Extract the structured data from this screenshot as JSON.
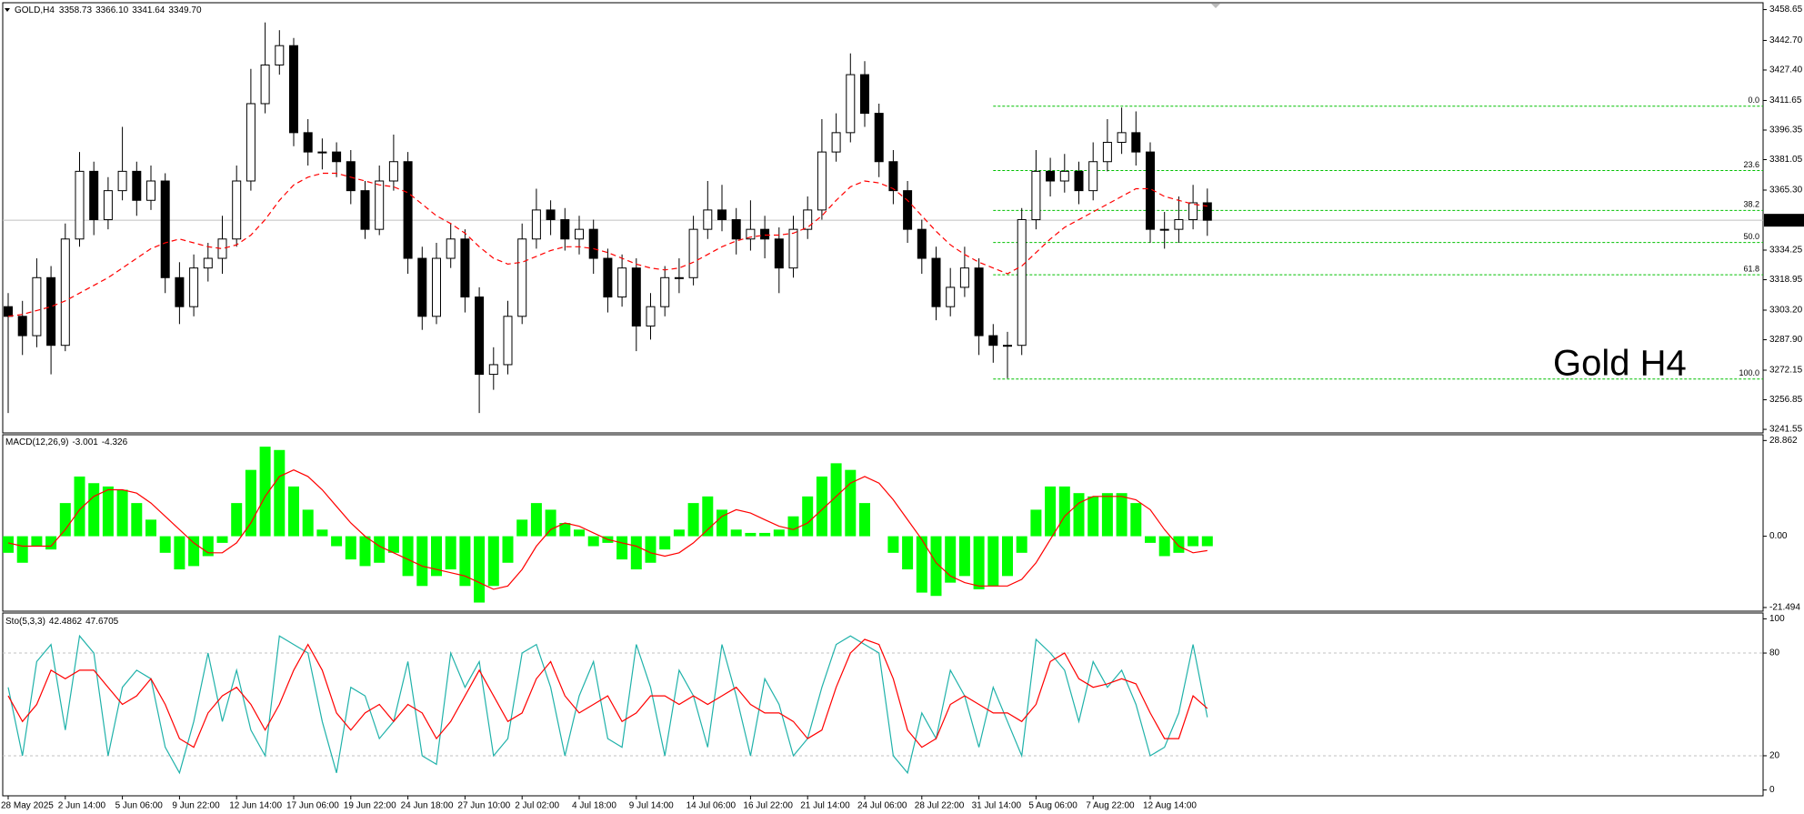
{
  "chart_data": [
    {
      "type": "candlestick",
      "title": "GOLD,H4",
      "header_values": [
        "3358.73",
        "3366.10",
        "3341.64",
        "3349.70"
      ],
      "categories": [
        "28 May 2025",
        null,
        null,
        null,
        "2 Jun 14:00",
        null,
        null,
        null,
        "5 Jun 06:00",
        null,
        null,
        null,
        "9 Jun 22:00",
        null,
        null,
        null,
        "12 Jun 14:00",
        null,
        null,
        null,
        "17 Jun 06:00",
        null,
        null,
        null,
        "19 Jun 22:00",
        null,
        null,
        null,
        "24 Jun 18:00",
        null,
        null,
        null,
        "27 Jun 10:00",
        null,
        null,
        null,
        "2 Jul 02:00",
        null,
        null,
        null,
        "4 Jul 18:00",
        null,
        null,
        null,
        "9 Jul 14:00",
        null,
        null,
        null,
        "14 Jul 06:00",
        null,
        null,
        null,
        "16 Jul 22:00",
        null,
        null,
        null,
        "21 Jul 14:00",
        null,
        null,
        null,
        "24 Jul 06:00",
        null,
        null,
        null,
        "28 Jul 22:00",
        null,
        null,
        null,
        "31 Jul 14:00",
        null,
        null,
        null,
        "5 Aug 06:00",
        null,
        null,
        null,
        "7 Aug 22:00",
        null,
        null,
        null,
        "12 Aug 14:00",
        null,
        null,
        null,
        null
      ],
      "open": [
        3305,
        3300,
        3290,
        3320,
        3285,
        3340,
        3375,
        3350,
        3365,
        3375,
        3360,
        3370,
        3320,
        3305,
        3325,
        3330,
        3340,
        3370,
        3410,
        3430,
        3440,
        3395,
        3385,
        3385,
        3380,
        3365,
        3345,
        3370,
        3380,
        3330,
        3300,
        3330,
        3340,
        3310,
        3270,
        3275,
        3300,
        3340,
        3355,
        3350,
        3340,
        3345,
        3330,
        3310,
        3325,
        3295,
        3305,
        3320,
        3320,
        3345,
        3355,
        3350,
        3340,
        3345,
        3340,
        3325,
        3345,
        3355,
        3385,
        3395,
        3425,
        3405,
        3380,
        3365,
        3345,
        3330,
        3305,
        3315,
        3325,
        3290,
        3285,
        3285,
        3350,
        3375,
        3370,
        3375,
        3365,
        3380,
        3390,
        3395,
        3385,
        3345,
        3345,
        3350,
        3358.73
      ],
      "high": [
        3312,
        3308,
        3330,
        3326,
        3348,
        3385,
        3380,
        3372,
        3398,
        3380,
        3378,
        3374,
        3328,
        3332,
        3338,
        3352,
        3378,
        3428,
        3452,
        3448,
        3444,
        3402,
        3392,
        3390,
        3386,
        3370,
        3378,
        3394,
        3385,
        3336,
        3338,
        3348,
        3345,
        3315,
        3284,
        3308,
        3348,
        3366,
        3360,
        3356,
        3352,
        3350,
        3335,
        3332,
        3330,
        3312,
        3326,
        3330,
        3352,
        3370,
        3368,
        3356,
        3360,
        3352,
        3346,
        3352,
        3362,
        3402,
        3405,
        3436,
        3432,
        3410,
        3386,
        3370,
        3350,
        3336,
        3325,
        3336,
        3330,
        3296,
        3292,
        3356,
        3386,
        3382,
        3384,
        3380,
        3390,
        3402,
        3408,
        3406,
        3390,
        3354,
        3362,
        3368,
        3366.1
      ],
      "low": [
        3250,
        3280,
        3284,
        3270,
        3282,
        3336,
        3342,
        3345,
        3360,
        3352,
        3355,
        3312,
        3296,
        3300,
        3318,
        3322,
        3336,
        3365,
        3405,
        3425,
        3388,
        3378,
        3376,
        3372,
        3358,
        3340,
        3342,
        3365,
        3322,
        3293,
        3296,
        3325,
        3302,
        3250,
        3262,
        3270,
        3296,
        3335,
        3342,
        3334,
        3332,
        3322,
        3302,
        3305,
        3282,
        3288,
        3300,
        3312,
        3316,
        3340,
        3344,
        3332,
        3334,
        3330,
        3312,
        3320,
        3340,
        3350,
        3380,
        3390,
        3398,
        3372,
        3358,
        3338,
        3322,
        3298,
        3300,
        3310,
        3280,
        3276,
        3268,
        3280,
        3345,
        3362,
        3364,
        3358,
        3360,
        3375,
        3384,
        3378,
        3338,
        3335,
        3338,
        3345,
        3341.64
      ],
      "close": [
        3300,
        3290,
        3320,
        3285,
        3340,
        3375,
        3350,
        3365,
        3375,
        3360,
        3370,
        3320,
        3305,
        3325,
        3330,
        3340,
        3370,
        3410,
        3430,
        3440,
        3395,
        3385,
        3385,
        3380,
        3365,
        3345,
        3370,
        3380,
        3330,
        3300,
        3330,
        3340,
        3310,
        3270,
        3275,
        3300,
        3340,
        3355,
        3350,
        3340,
        3345,
        3330,
        3310,
        3325,
        3295,
        3305,
        3320,
        3320,
        3345,
        3355,
        3350,
        3340,
        3345,
        3340,
        3325,
        3345,
        3355,
        3385,
        3395,
        3425,
        3405,
        3380,
        3365,
        3345,
        3330,
        3305,
        3315,
        3325,
        3290,
        3285,
        3285,
        3350,
        3375,
        3370,
        3375,
        3365,
        3380,
        3390,
        3395,
        3385,
        3345,
        3345,
        3350,
        3358.73,
        3349.7
      ],
      "ma": {
        "color": "#ff0000",
        "values": [
          3300,
          3301,
          3303,
          3305,
          3308,
          3312,
          3316,
          3320,
          3325,
          3330,
          3335,
          3338,
          3340,
          3338,
          3336,
          3335,
          3337,
          3342,
          3350,
          3360,
          3368,
          3372,
          3374,
          3374,
          3372,
          3370,
          3368,
          3367,
          3364,
          3358,
          3352,
          3348,
          3343,
          3336,
          3330,
          3327,
          3328,
          3331,
          3334,
          3336,
          3336,
          3335,
          3333,
          3330,
          3327,
          3325,
          3324,
          3325,
          3328,
          3332,
          3336,
          3339,
          3341,
          3342,
          3342,
          3343,
          3346,
          3352,
          3360,
          3367,
          3370,
          3369,
          3366,
          3360,
          3352,
          3344,
          3337,
          3332,
          3328,
          3325,
          3322,
          3326,
          3333,
          3340,
          3346,
          3350,
          3354,
          3358,
          3362,
          3366,
          3366,
          3362,
          3360,
          3358,
          3357
        ]
      },
      "up_color": "#ffffff",
      "down_color": "#000000",
      "ylim": [
        3239.7,
        3462.2
      ],
      "yticks": [
        {
          "value": 3458.65,
          "label": "3458.65"
        },
        {
          "value": 3442.7,
          "label": "3442.70"
        },
        {
          "value": 3427.4,
          "label": "3427.40"
        },
        {
          "value": 3411.65,
          "label": "3411.65"
        },
        {
          "value": 3396.35,
          "label": "3396.35"
        },
        {
          "value": 3381.05,
          "label": "3381.05"
        },
        {
          "value": 3365.3,
          "label": "3365.30"
        },
        {
          "value": 3334.25,
          "label": "3334.25"
        },
        {
          "value": 3318.95,
          "label": "3318.95"
        },
        {
          "value": 3303.2,
          "label": "3303.20"
        },
        {
          "value": 3287.9,
          "label": "3287.90"
        },
        {
          "value": 3272.15,
          "label": "3272.15"
        },
        {
          "value": 3256.85,
          "label": "3256.85"
        },
        {
          "value": 3241.55,
          "label": "3241.55"
        }
      ],
      "fib_color": "#00c000",
      "fib_levels": [
        {
          "value": 3408.7,
          "label": "0.0"
        },
        {
          "value": 3375.4,
          "label": "23.6"
        },
        {
          "value": 3354.8,
          "label": "38.2"
        },
        {
          "value": 3338.2,
          "label": "50.0"
        },
        {
          "value": 3321.5,
          "label": "61.8"
        },
        {
          "value": 3267.6,
          "label": "100.0"
        }
      ],
      "watermark": "Gold H4"
    },
    {
      "type": "macd",
      "title": "MACD(12,26,9)",
      "histogram": {
        "color": "#00ff00",
        "values": [
          -5,
          -8,
          -3,
          -4,
          10,
          18,
          16,
          15,
          14,
          10,
          5,
          -5,
          -10,
          -9,
          -6,
          -2,
          10,
          20,
          27,
          26,
          15,
          8,
          2,
          -3,
          -7,
          -9,
          -8,
          -5,
          -12,
          -15,
          -12,
          -10,
          -15,
          -20,
          -15,
          -8,
          5,
          10,
          8,
          4,
          2,
          -3,
          -2,
          -7,
          -10,
          -8,
          -4,
          2,
          10,
          12,
          8,
          2,
          1,
          1,
          2,
          6,
          12,
          18,
          22,
          20,
          10,
          0,
          -5,
          -10,
          -17,
          -18,
          -14,
          -12,
          -16,
          -15,
          -12,
          -5,
          8,
          15,
          15,
          13,
          12,
          13,
          13,
          10,
          -2,
          -6,
          -5,
          -3,
          -3.001
        ]
      },
      "signal": {
        "color": "#ff0000",
        "values": [
          -2,
          -3,
          -3,
          -3,
          2,
          8,
          12,
          14,
          14,
          13,
          10,
          6,
          2,
          -2,
          -5,
          -5,
          -2,
          4,
          12,
          18,
          20,
          18,
          14,
          9,
          4,
          0,
          -3,
          -5,
          -7,
          -9,
          -10,
          -11,
          -12,
          -14,
          -16,
          -15,
          -10,
          -3,
          2,
          4,
          3,
          1,
          -1,
          -2,
          -3,
          -5,
          -6,
          -5,
          -2,
          2,
          6,
          8,
          7,
          5,
          3,
          2,
          4,
          8,
          12,
          16,
          18,
          16,
          11,
          5,
          -1,
          -8,
          -12,
          -14,
          -15,
          -15,
          -15,
          -13,
          -8,
          -1,
          6,
          10,
          12,
          12,
          12,
          11,
          8,
          2,
          -3,
          -5,
          -4.326
        ]
      },
      "ylim": [
        -22.6,
        30.6
      ],
      "yticks": [
        28.862,
        {
          "value": 0,
          "label": "0.00"
        },
        -21.494
      ]
    },
    {
      "type": "stochastic",
      "title": "Sto(5,3,3)",
      "main": {
        "color": "#20b2aa",
        "values": [
          60,
          20,
          75,
          85,
          35,
          90,
          80,
          20,
          60,
          70,
          65,
          25,
          10,
          40,
          80,
          40,
          70,
          35,
          20,
          90,
          85,
          80,
          40,
          10,
          60,
          55,
          30,
          40,
          75,
          20,
          15,
          80,
          60,
          75,
          20,
          30,
          80,
          85,
          60,
          20,
          55,
          75,
          30,
          25,
          85,
          60,
          20,
          70,
          55,
          25,
          85,
          55,
          20,
          65,
          50,
          20,
          30,
          60,
          85,
          90,
          85,
          80,
          20,
          10,
          45,
          30,
          70,
          55,
          25,
          60,
          40,
          20,
          88,
          80,
          70,
          40,
          75,
          60,
          70,
          50,
          20,
          25,
          45,
          85,
          42.4862
        ]
      },
      "signal": {
        "color": "#ff0000",
        "values": [
          55,
          40,
          50,
          70,
          65,
          70,
          70,
          60,
          50,
          55,
          65,
          50,
          30,
          25,
          45,
          55,
          60,
          50,
          35,
          50,
          70,
          85,
          70,
          45,
          35,
          45,
          50,
          40,
          50,
          45,
          30,
          40,
          55,
          70,
          55,
          40,
          45,
          65,
          75,
          55,
          45,
          50,
          55,
          40,
          45,
          55,
          55,
          50,
          55,
          50,
          55,
          60,
          50,
          45,
          45,
          40,
          30,
          35,
          60,
          80,
          88,
          85,
          65,
          35,
          25,
          30,
          50,
          55,
          50,
          45,
          45,
          40,
          50,
          75,
          80,
          65,
          60,
          62,
          65,
          62,
          45,
          30,
          30,
          55,
          47.6705
        ]
      },
      "ylim": [
        -3.4,
        103.4
      ],
      "yticks": [
        100,
        80,
        20,
        0
      ],
      "levels": [
        80,
        20
      ]
    }
  ]
}
